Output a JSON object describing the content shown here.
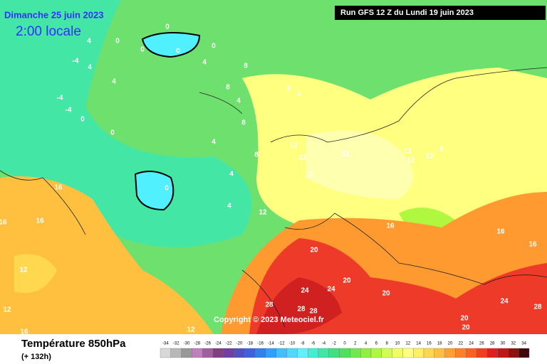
{
  "header": {
    "date": "Dimanche 25 juin 2023",
    "time": "2:00 locale",
    "run": "Run GFS 12 Z du Lundi 19 juin 2023",
    "copyright": "Copyright © 2023 Meteociel.fr"
  },
  "footer": {
    "field": "Température 850hPa",
    "lead": "(+ 132h)"
  },
  "scale": {
    "values": [
      -34,
      -32,
      -30,
      -28,
      -26,
      -24,
      -22,
      -20,
      -18,
      -16,
      -14,
      -12,
      -10,
      -8,
      -6,
      -4,
      -2,
      0,
      2,
      4,
      6,
      8,
      10,
      12,
      14,
      16,
      18,
      20,
      22,
      24,
      26,
      28,
      30,
      32,
      34
    ],
    "colors": [
      "#d8d8d8",
      "#b8b8b8",
      "#989898",
      "#c080c0",
      "#a060a0",
      "#804080",
      "#7040a0",
      "#5050c0",
      "#4060e0",
      "#3080f0",
      "#30a0ff",
      "#40c0ff",
      "#50d8ff",
      "#60f0ff",
      "#40f0d0",
      "#40e8a8",
      "#40e080",
      "#50e060",
      "#70e850",
      "#90f040",
      "#b0f840",
      "#d0ff50",
      "#f0ff60",
      "#ffff80",
      "#fff060",
      "#ffd850",
      "#ffc040",
      "#ffa030",
      "#ff8028",
      "#ff6020",
      "#f04020",
      "#e02020",
      "#c01818",
      "#901010",
      "#400808"
    ]
  },
  "map_labels": {
    "values": [
      0,
      4,
      0,
      0,
      0,
      4,
      0,
      -4,
      4,
      8,
      4,
      -4,
      -4,
      0,
      0,
      0,
      4,
      8,
      4,
      8,
      8,
      4,
      8,
      4,
      4,
      12,
      12,
      12,
      12,
      12,
      12,
      8,
      16,
      16,
      16,
      12,
      12,
      12,
      16,
      16,
      20,
      20,
      24,
      24,
      28,
      28,
      28,
      20,
      20,
      24,
      28,
      20,
      16,
      16,
      12,
      12
    ]
  }
}
